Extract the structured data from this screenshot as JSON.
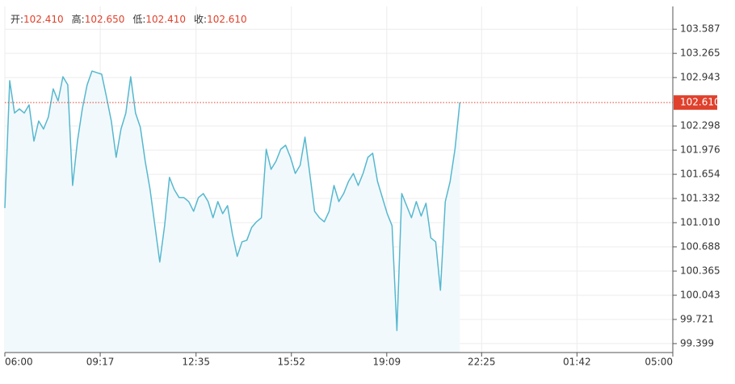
{
  "chart_data": {
    "type": "line",
    "header": [
      {
        "name": "开:",
        "value": {
          "value": 102.41,
          "label": "102.410"
        }
      },
      {
        "name": "高:",
        "value": {
          "value": 102.65,
          "label": "102.650"
        }
      },
      {
        "name": "低:",
        "value": {
          "value": 102.41,
          "label": "102.410"
        }
      },
      {
        "name": "收:",
        "value": {
          "value": 102.61,
          "label": "102.610"
        }
      }
    ],
    "x": [
      "06:00",
      "06:10",
      "06:20",
      "06:30",
      "06:40",
      "06:50",
      "07:00",
      "07:10",
      "07:20",
      "07:30",
      "07:40",
      "07:50",
      "08:00",
      "08:10",
      "08:20",
      "08:30",
      "08:40",
      "08:50",
      "09:00",
      "09:10",
      "09:20",
      "09:30",
      "09:40",
      "09:50",
      "10:00",
      "10:10",
      "10:20",
      "10:30",
      "10:40",
      "10:50",
      "11:00",
      "11:10",
      "11:20",
      "11:30",
      "11:40",
      "11:50",
      "12:00",
      "12:10",
      "12:20",
      "12:30",
      "12:40",
      "12:50",
      "13:00",
      "13:10",
      "13:20",
      "13:30",
      "13:40",
      "13:50",
      "14:00",
      "14:10",
      "14:20",
      "14:30",
      "14:40",
      "14:50",
      "15:00",
      "15:10",
      "15:20",
      "15:30",
      "15:40",
      "15:50",
      "16:00",
      "16:10",
      "16:20",
      "16:30",
      "16:40",
      "16:50",
      "17:00",
      "17:10",
      "17:20",
      "17:30",
      "17:40",
      "17:50",
      "18:00",
      "18:10",
      "18:20",
      "18:30",
      "18:40",
      "18:50",
      "19:00",
      "19:10",
      "19:20",
      "19:30",
      "19:40",
      "19:50",
      "20:00",
      "20:10",
      "20:20",
      "20:30",
      "20:40",
      "20:50",
      "21:00",
      "21:10",
      "21:20",
      "21:30",
      "21:40"
    ],
    "values": [
      101.205,
      102.901,
      102.471,
      102.525,
      102.471,
      102.579,
      102.096,
      102.364,
      102.257,
      102.418,
      102.793,
      102.632,
      102.954,
      102.847,
      101.505,
      102.096,
      102.525,
      102.847,
      103.029,
      103.008,
      102.987,
      102.686,
      102.364,
      101.881,
      102.257,
      102.471,
      102.954,
      102.471,
      102.278,
      101.827,
      101.452,
      100.969,
      100.486,
      100.969,
      101.613,
      101.452,
      101.344,
      101.344,
      101.291,
      101.162,
      101.344,
      101.398,
      101.291,
      101.076,
      101.291,
      101.13,
      101.237,
      100.861,
      100.561,
      100.754,
      100.776,
      100.947,
      101.022,
      101.076,
      101.988,
      101.72,
      101.827,
      101.988,
      102.042,
      101.881,
      101.666,
      101.774,
      102.149,
      101.666,
      101.162,
      101.076,
      101.022,
      101.162,
      101.505,
      101.291,
      101.398,
      101.559,
      101.666,
      101.505,
      101.666,
      101.881,
      101.935,
      101.559,
      101.344,
      101.13,
      100.969,
      99.573,
      101.398,
      101.237,
      101.076,
      101.291,
      101.098,
      101.269,
      100.808,
      100.754,
      100.11,
      101.291,
      101.559,
      101.988,
      102.61
    ],
    "color": "#56b8cf",
    "area_color": "#f2f9fc",
    "last": {
      "value": 102.61,
      "label": "102.610"
    },
    "last_color": "#e0412c",
    "xlim": [
      "06:00",
      "05:00"
    ],
    "xticks": [
      "06:00",
      "09:17",
      "12:35",
      "15:52",
      "19:09",
      "22:25",
      "01:42",
      "05:00"
    ],
    "ylim": [
      99.28,
      103.89
    ],
    "yticks": [
      99.399,
      99.721,
      100.043,
      100.365,
      100.688,
      {
        "value": 101.01,
        "label": "101.010"
      },
      101.332,
      101.654,
      101.976,
      102.298,
      102.943,
      103.265,
      103.587
    ],
    "grid": true
  }
}
